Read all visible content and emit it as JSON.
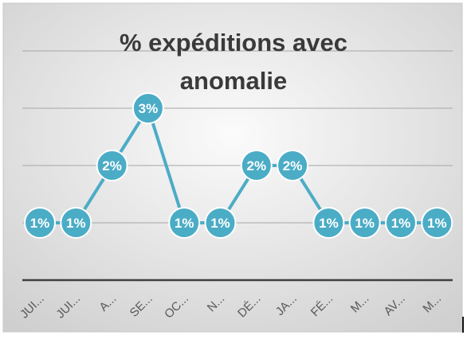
{
  "chart_data": {
    "type": "line",
    "title": "% expéditions avec\nanomalie",
    "categories": [
      "JUI...",
      "JUI...",
      "A...",
      "SE...",
      "OC...",
      "N...",
      "DÉ...",
      "JA...",
      "FÉ...",
      "M...",
      "AV...",
      "M..."
    ],
    "values": [
      1,
      1,
      2,
      3,
      1,
      1,
      2,
      2,
      1,
      1,
      1,
      1
    ],
    "data_labels": [
      "1%",
      "1%",
      "2%",
      "3%",
      "1%",
      "1%",
      "2%",
      "2%",
      "1%",
      "1%",
      "1%",
      "1%"
    ],
    "ylim": [
      0,
      4
    ],
    "grid": true,
    "legend": "none",
    "colors": {
      "series": "#4bacc6",
      "marker_text": "#ffffff",
      "gridline": "#a6a6a6",
      "axis": "#404040",
      "tick_label": "#595959",
      "background_light": "#fbfbfb",
      "background_dark": "#cfcfcf"
    }
  }
}
